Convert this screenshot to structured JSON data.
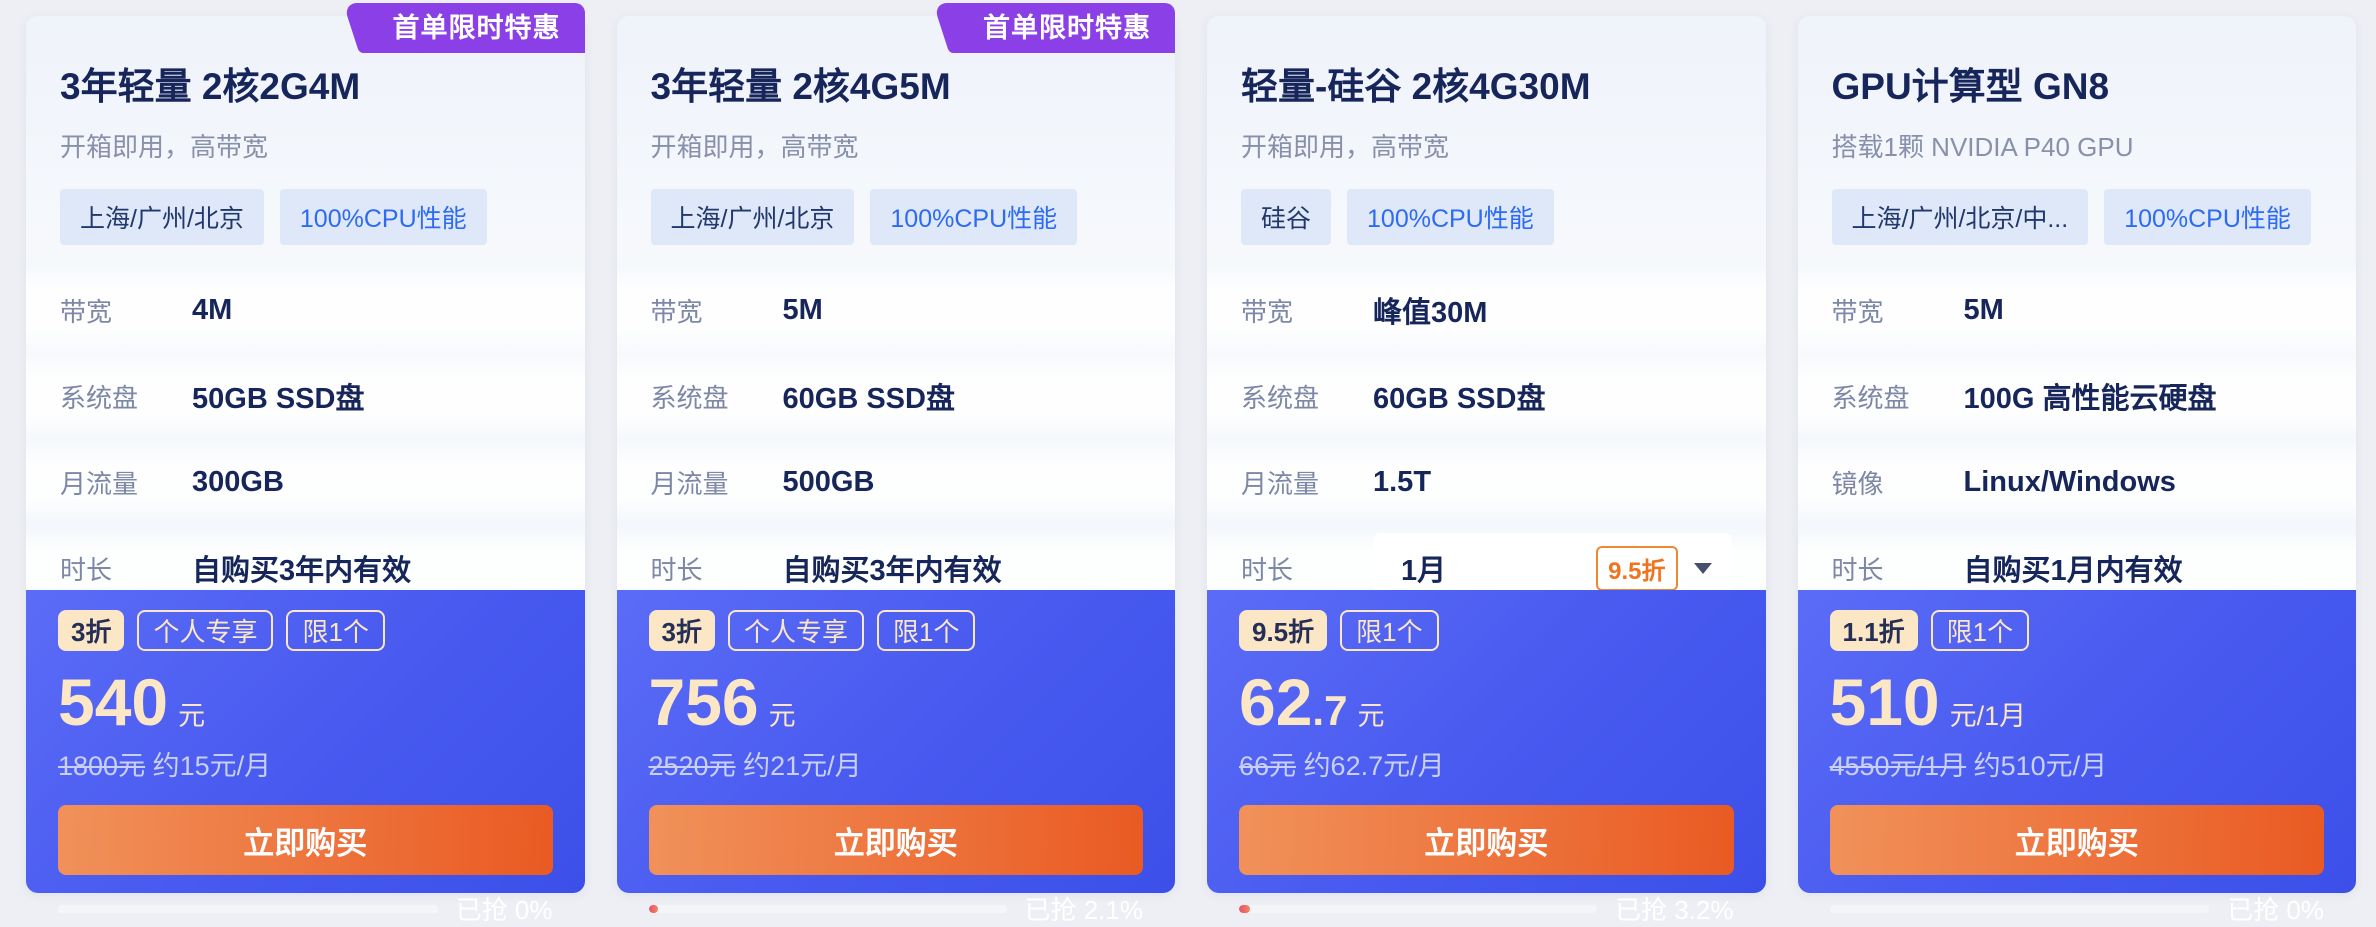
{
  "colors": {
    "page_bg": "#edeff4",
    "ribbon_purple": "#8a3fe7",
    "footer_blue": "#4759ef",
    "button_orange": "#ea5a23",
    "cream": "#fbe6c6",
    "accent_blue": "#2d6bf2",
    "navy": "#17265a"
  },
  "cards": [
    {
      "ribbon": "首单限时特惠",
      "title": "3年轻量 2核2G4M",
      "subtitle": "开箱即用，高带宽",
      "tags": [
        "上海/广州/北京",
        "100%CPU性能"
      ],
      "specs": [
        {
          "label": "带宽",
          "value": "4M"
        },
        {
          "label": "系统盘",
          "value": "50GB SSD盘"
        },
        {
          "label": "月流量",
          "value": "300GB"
        },
        {
          "label": "时长",
          "value": "自购买3年内有效"
        }
      ],
      "deal_badges": [
        {
          "label": "3折",
          "style": "solid"
        },
        {
          "label": "个人专享",
          "style": "outline"
        },
        {
          "label": "限1个",
          "style": "outline"
        }
      ],
      "price": {
        "integer": "540",
        "decimal": "",
        "unit": "元"
      },
      "original_price": "1800元",
      "approx_price": "约15元/月",
      "buy_label": "立即购买",
      "progress": {
        "label": "已抢 0%",
        "percent": 0
      }
    },
    {
      "ribbon": "首单限时特惠",
      "title": "3年轻量 2核4G5M",
      "subtitle": "开箱即用，高带宽",
      "tags": [
        "上海/广州/北京",
        "100%CPU性能"
      ],
      "specs": [
        {
          "label": "带宽",
          "value": "5M"
        },
        {
          "label": "系统盘",
          "value": "60GB SSD盘"
        },
        {
          "label": "月流量",
          "value": "500GB"
        },
        {
          "label": "时长",
          "value": "自购买3年内有效"
        }
      ],
      "deal_badges": [
        {
          "label": "3折",
          "style": "solid"
        },
        {
          "label": "个人专享",
          "style": "outline"
        },
        {
          "label": "限1个",
          "style": "outline"
        }
      ],
      "price": {
        "integer": "756",
        "decimal": "",
        "unit": "元"
      },
      "original_price": "2520元",
      "approx_price": "约21元/月",
      "buy_label": "立即购买",
      "progress": {
        "label": "已抢 2.1%",
        "percent": 2.1
      }
    },
    {
      "ribbon": null,
      "title": "轻量-硅谷 2核4G30M",
      "subtitle": "开箱即用，高带宽",
      "tags": [
        "硅谷",
        "100%CPU性能"
      ],
      "specs": [
        {
          "label": "带宽",
          "value": "峰值30M"
        },
        {
          "label": "系统盘",
          "value": "60GB SSD盘"
        },
        {
          "label": "月流量",
          "value": "1.5T"
        },
        {
          "label": "时长",
          "value": "1月",
          "control": "select",
          "discount": "9.5折"
        }
      ],
      "deal_badges": [
        {
          "label": "9.5折",
          "style": "solid"
        },
        {
          "label": "限1个",
          "style": "outline"
        }
      ],
      "price": {
        "integer": "62",
        "decimal": ".7",
        "unit": "元"
      },
      "original_price": "66元",
      "approx_price": "约62.7元/月",
      "buy_label": "立即购买",
      "progress": {
        "label": "已抢 3.2%",
        "percent": 3.2
      }
    },
    {
      "ribbon": null,
      "title": "GPU计算型 GN8",
      "subtitle": "搭载1颗 NVIDIA P40 GPU",
      "tags": [
        "上海/广州/北京/中...",
        "100%CPU性能"
      ],
      "specs": [
        {
          "label": "带宽",
          "value": "5M"
        },
        {
          "label": "系统盘",
          "value": "100G 高性能云硬盘"
        },
        {
          "label": "镜像",
          "value": "Linux/Windows"
        },
        {
          "label": "时长",
          "value": "自购买1月内有效"
        }
      ],
      "deal_badges": [
        {
          "label": "1.1折",
          "style": "solid"
        },
        {
          "label": "限1个",
          "style": "outline"
        }
      ],
      "price": {
        "integer": "510",
        "decimal": "",
        "unit": "元/1月"
      },
      "original_price": "4550元/1月",
      "approx_price": "约510元/月",
      "buy_label": "立即购买",
      "progress": {
        "label": "已抢 0%",
        "percent": 0
      }
    }
  ]
}
